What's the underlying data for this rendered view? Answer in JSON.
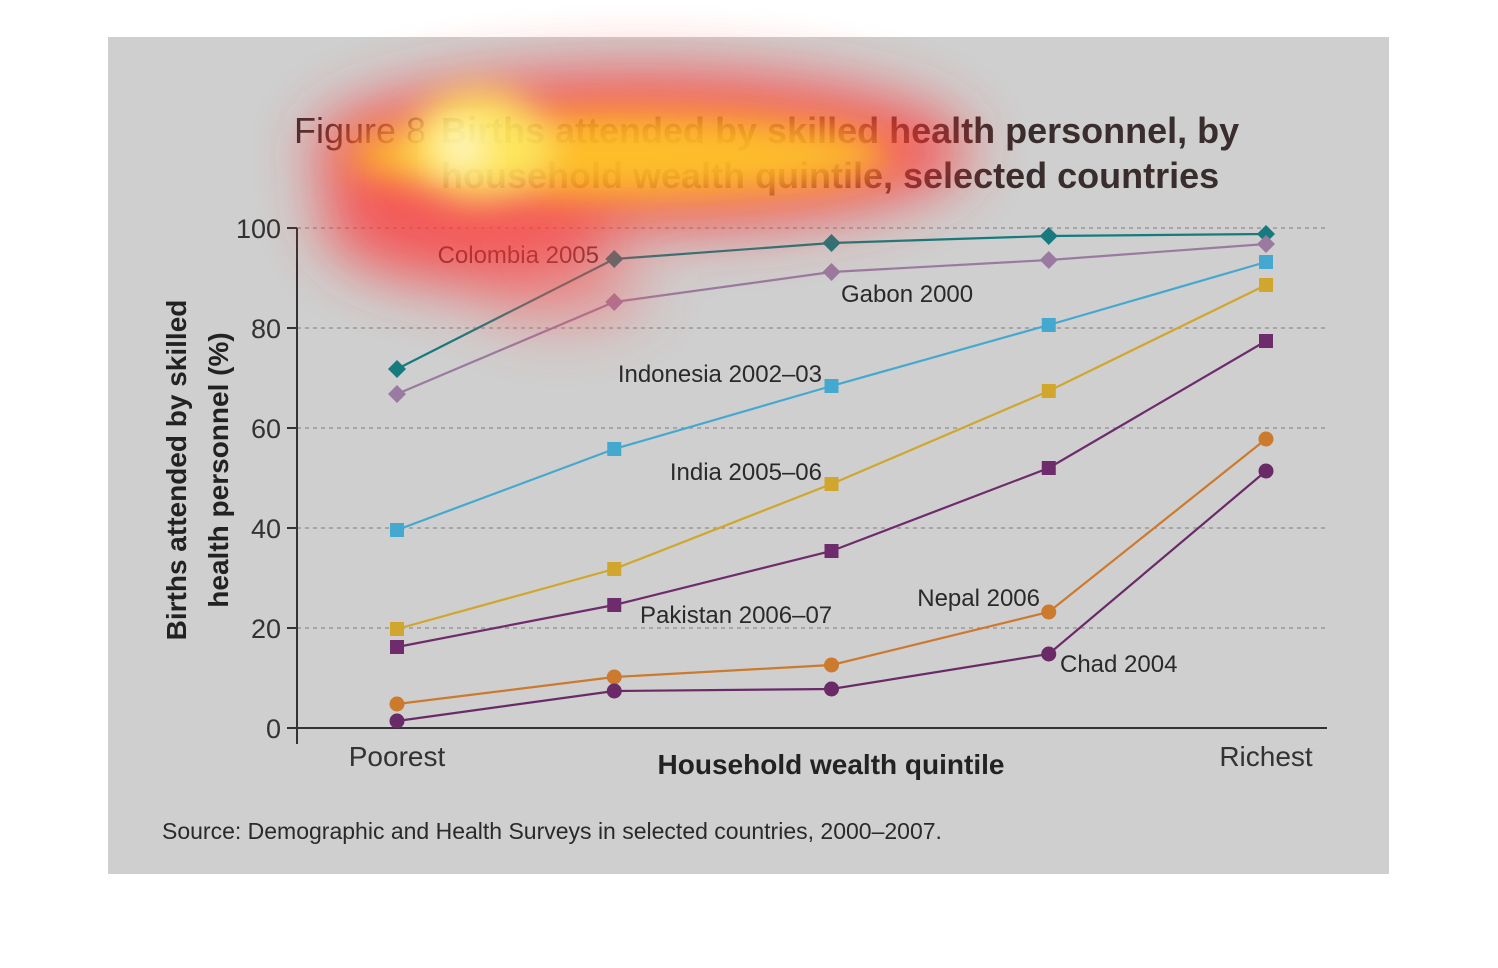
{
  "figure": {
    "label": "Figure 8",
    "title_line1": "Births attended by skilled health personnel, by",
    "title_line2": "household wealth quintile, selected countries",
    "source": "Source: Demographic and Health Surveys in selected countries, 2000–2007."
  },
  "chart_data": {
    "type": "line",
    "title": "Births attended by skilled health personnel, by household wealth quintile, selected countries",
    "xlabel": "Household wealth quintile",
    "ylabel_line1": "Births attended by skilled",
    "ylabel_line2": "health personnel (%)",
    "ylabel": "Births attended by skilled health personnel (%)",
    "x_tick_labels": [
      "Poorest",
      "",
      "",
      "",
      "Richest"
    ],
    "x": [
      1,
      2,
      3,
      4,
      5
    ],
    "ylim": [
      0,
      100
    ],
    "yticks": [
      0,
      20,
      40,
      60,
      80,
      100
    ],
    "grid": "horizontal dashed",
    "series": [
      {
        "name": "Colombia 2005",
        "color": "#177a7e",
        "marker": "diamond",
        "values": [
          71.8,
          93.8,
          97.0,
          98.4,
          98.8
        ]
      },
      {
        "name": "Gabon 2000",
        "color": "#9a7aa0",
        "marker": "diamond",
        "values": [
          66.8,
          85.2,
          91.2,
          93.6,
          96.8
        ]
      },
      {
        "name": "Indonesia 2002–03",
        "color": "#45a8cf",
        "marker": "square",
        "values": [
          39.6,
          55.8,
          68.4,
          80.6,
          93.2
        ]
      },
      {
        "name": "India 2005–06",
        "color": "#d1a62c",
        "marker": "square",
        "values": [
          19.8,
          31.8,
          48.8,
          67.4,
          88.6
        ]
      },
      {
        "name": "Pakistan 2006–07",
        "color": "#6e2c6c",
        "marker": "square",
        "values": [
          16.2,
          24.6,
          35.4,
          52.0,
          77.4
        ]
      },
      {
        "name": "Nepal 2006",
        "color": "#cc7a2e",
        "marker": "circle",
        "values": [
          4.8,
          10.2,
          12.6,
          23.2,
          57.8
        ]
      },
      {
        "name": "Chad 2004",
        "color": "#6a2a68",
        "marker": "circle",
        "values": [
          1.4,
          7.4,
          7.8,
          14.8,
          51.4
        ]
      }
    ]
  }
}
